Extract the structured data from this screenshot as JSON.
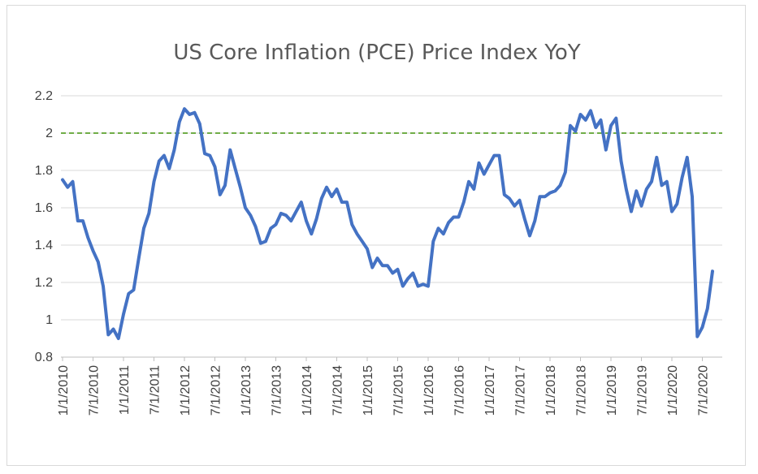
{
  "chart_data": {
    "type": "line",
    "title": "US Core Inflation (PCE) Price Index YoY",
    "xlabel": "",
    "ylabel": "",
    "ylim": [
      0.8,
      2.2
    ],
    "yticks": [
      "0.8",
      "1",
      "1.2",
      "1.4",
      "1.6",
      "1.8",
      "2",
      "2.2"
    ],
    "xticks": [
      "1/1/2010",
      "7/1/2010",
      "1/1/2011",
      "7/1/2011",
      "1/1/2012",
      "7/1/2012",
      "1/1/2013",
      "7/1/2013",
      "1/1/2014",
      "7/1/2014",
      "1/1/2015",
      "7/1/2015",
      "1/1/2016",
      "7/1/2016",
      "1/1/2017",
      "7/1/2017",
      "1/1/2018",
      "7/1/2018",
      "1/1/2019",
      "7/1/2019",
      "1/1/2020",
      "7/1/2020"
    ],
    "x_start": "1/1/2010",
    "x_end": "8/1/2020",
    "grid": true,
    "legend": "none",
    "reference_line": {
      "y": 2,
      "style": "dashed",
      "color": "#70ad47"
    },
    "series": [
      {
        "color": "#4472c4",
        "values": [
          1.75,
          1.71,
          1.74,
          1.53,
          1.53,
          1.44,
          1.37,
          1.31,
          1.18,
          0.92,
          0.95,
          0.9,
          1.03,
          1.14,
          1.16,
          1.33,
          1.49,
          1.57,
          1.74,
          1.85,
          1.88,
          1.81,
          1.91,
          2.06,
          2.13,
          2.1,
          2.11,
          2.05,
          1.89,
          1.88,
          1.82,
          1.67,
          1.72,
          1.91,
          1.81,
          1.71,
          1.6,
          1.56,
          1.5,
          1.41,
          1.42,
          1.49,
          1.51,
          1.57,
          1.56,
          1.53,
          1.58,
          1.63,
          1.53,
          1.46,
          1.54,
          1.65,
          1.71,
          1.66,
          1.7,
          1.63,
          1.63,
          1.51,
          1.46,
          1.42,
          1.38,
          1.28,
          1.33,
          1.29,
          1.29,
          1.25,
          1.27,
          1.18,
          1.22,
          1.25,
          1.18,
          1.19,
          1.18,
          1.42,
          1.49,
          1.46,
          1.52,
          1.55,
          1.55,
          1.63,
          1.74,
          1.7,
          1.84,
          1.78,
          1.83,
          1.88,
          1.88,
          1.67,
          1.65,
          1.61,
          1.64,
          1.54,
          1.45,
          1.53,
          1.66,
          1.66,
          1.68,
          1.69,
          1.72,
          1.79,
          2.04,
          2.01,
          2.1,
          2.07,
          2.12,
          2.03,
          2.07,
          1.91,
          2.04,
          2.08,
          1.85,
          1.7,
          1.58,
          1.69,
          1.61,
          1.7,
          1.74,
          1.87,
          1.72,
          1.74,
          1.58,
          1.62,
          1.76,
          1.87,
          1.66,
          0.91,
          0.96,
          1.06,
          1.26
        ]
      }
    ]
  }
}
